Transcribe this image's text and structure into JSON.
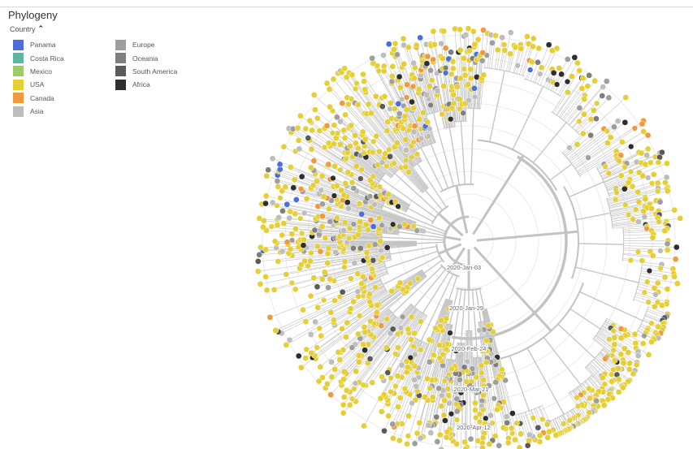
{
  "panel": {
    "title": "Phylogeny",
    "legend_toggle_label": "Country",
    "legend_toggle_icon": "chevron-up-icon"
  },
  "legend": {
    "column_1": [
      {
        "label": "Panama",
        "color": "#4b6fd6"
      },
      {
        "label": "Costa Rica",
        "color": "#5bb8a0"
      },
      {
        "label": "Mexico",
        "color": "#9ccc62"
      },
      {
        "label": "USA",
        "color": "#e5cf34"
      },
      {
        "label": "Canada",
        "color": "#ef9a3e"
      },
      {
        "label": "Asia",
        "color": "#bdbdbd"
      }
    ],
    "column_2": [
      {
        "label": "Europe",
        "color": "#9e9e9e"
      },
      {
        "label": "Oceania",
        "color": "#7e7e7e"
      },
      {
        "label": "South America",
        "color": "#5a5a5a"
      },
      {
        "label": "Africa",
        "color": "#2e2e2e"
      }
    ]
  },
  "tree": {
    "time_labels": [
      "2020-Jan-03",
      "2020-Jan-29",
      "2020-Feb-24",
      "2020-Mar-21",
      "2020-Apr-12"
    ],
    "branch_color": "#c3c3c3",
    "ring_color": "#e6e6e6"
  }
}
